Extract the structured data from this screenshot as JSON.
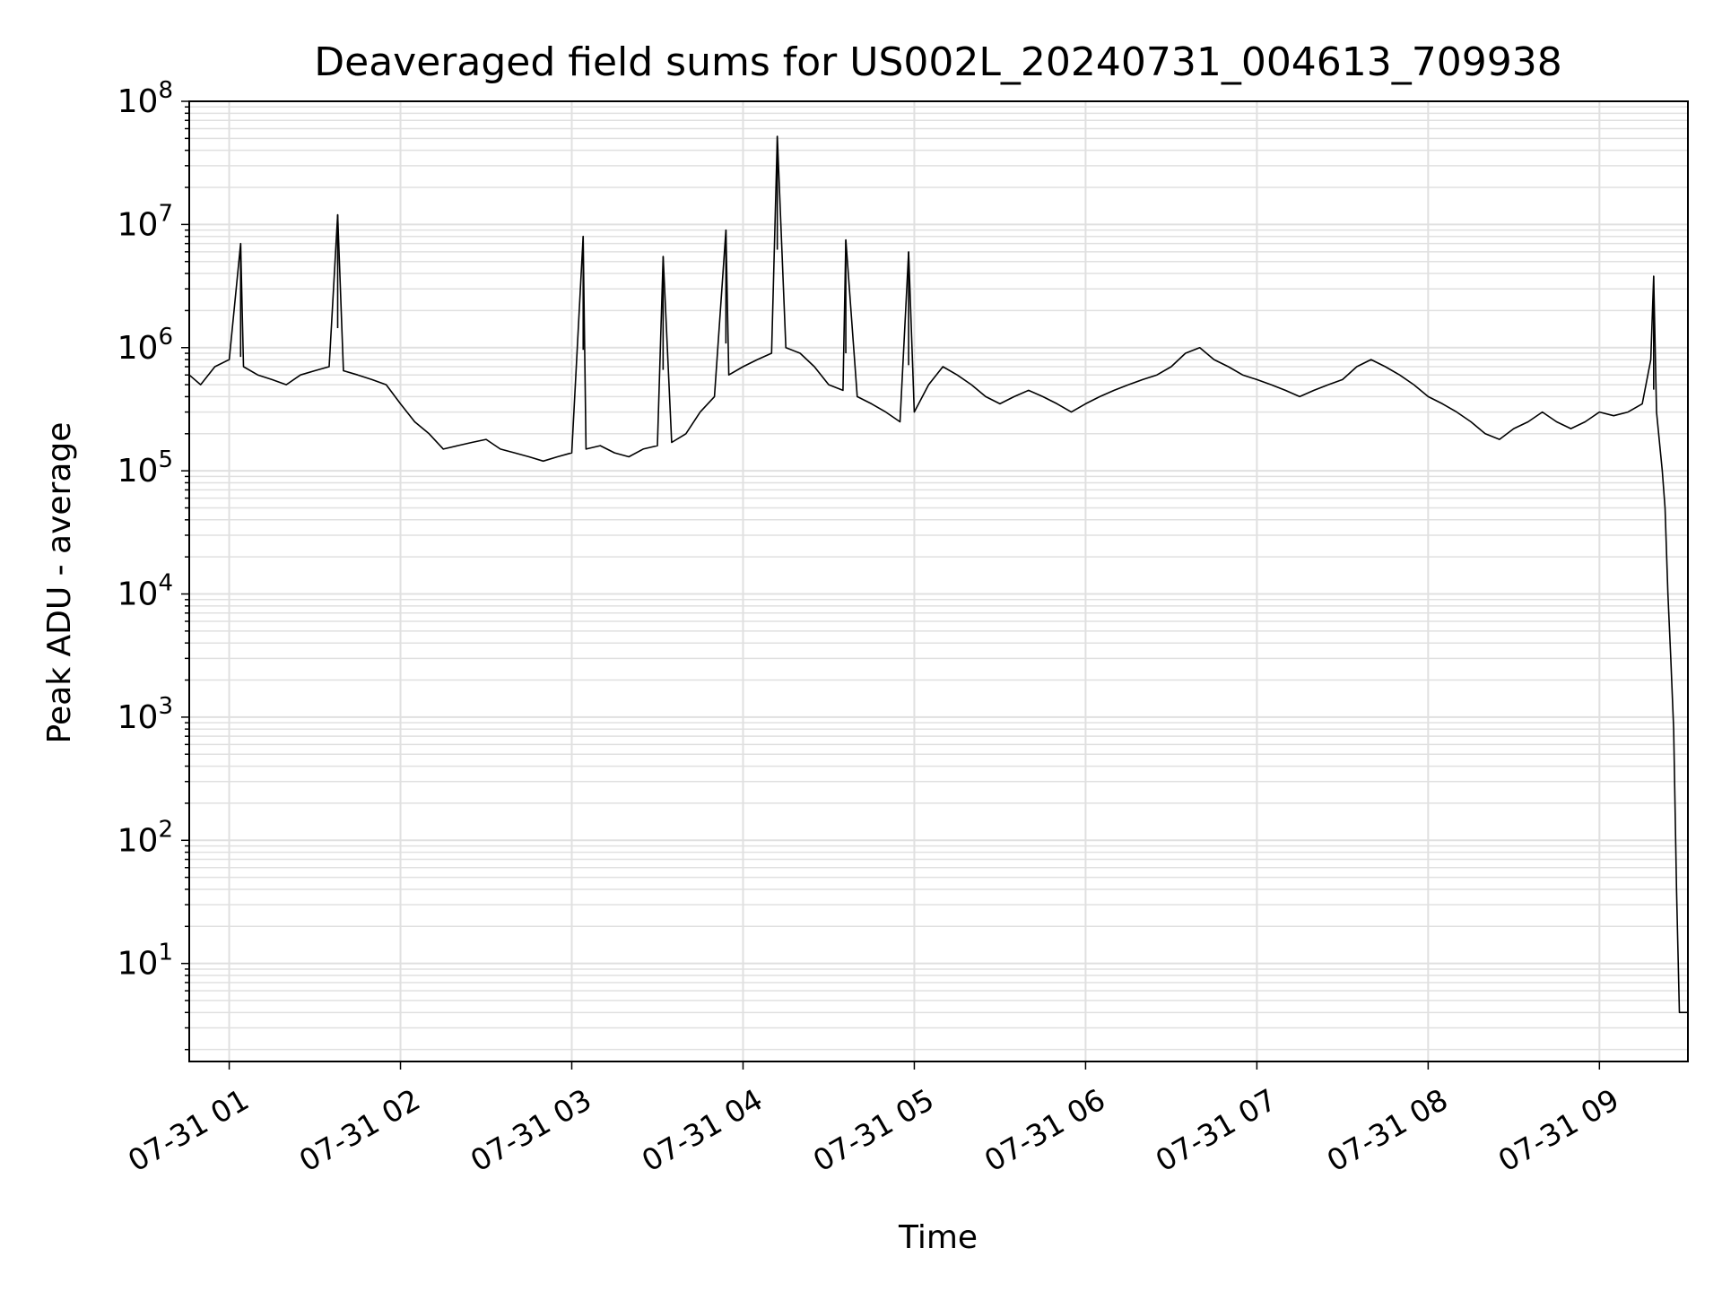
{
  "chart_data": {
    "type": "line",
    "title": "Deaveraged field sums for US002L_20240731_004613_709938",
    "xlabel": "Time",
    "ylabel": "Peak ADU - average",
    "yscale": "log",
    "ylim": [
      1.6,
      100000000
    ],
    "xlim": [
      "07-31 00:46",
      "07-31 09:31"
    ],
    "grid": true,
    "line_color": "#000000",
    "grid_color": "#e0e0e0",
    "x_ticks": [
      "07-31 01",
      "07-31 02",
      "07-31 03",
      "07-31 04",
      "07-31 05",
      "07-31 06",
      "07-31 07",
      "07-31 08",
      "07-31 09"
    ],
    "y_ticks": [
      {
        "base": "10",
        "exp": "1",
        "value": 10
      },
      {
        "base": "10",
        "exp": "2",
        "value": 100
      },
      {
        "base": "10",
        "exp": "3",
        "value": 1000
      },
      {
        "base": "10",
        "exp": "4",
        "value": 10000
      },
      {
        "base": "10",
        "exp": "5",
        "value": 100000
      },
      {
        "base": "10",
        "exp": "6",
        "value": 1000000
      },
      {
        "base": "10",
        "exp": "7",
        "value": 10000000
      },
      {
        "base": "10",
        "exp": "8",
        "value": 100000000
      }
    ],
    "series": [
      {
        "x": [
          "07-31 00:46",
          "07-31 00:50",
          "07-31 00:55",
          "07-31 01:00",
          "07-31 01:05",
          "07-31 01:10",
          "07-31 01:15",
          "07-31 01:20",
          "07-31 01:25",
          "07-31 01:30",
          "07-31 01:35",
          "07-31 01:40",
          "07-31 01:45",
          "07-31 01:50",
          "07-31 01:55",
          "07-31 02:00",
          "07-31 02:05",
          "07-31 02:10",
          "07-31 02:15",
          "07-31 02:20",
          "07-31 02:25",
          "07-31 02:30",
          "07-31 02:35",
          "07-31 02:40",
          "07-31 02:45",
          "07-31 02:50",
          "07-31 02:55",
          "07-31 03:00",
          "07-31 03:05",
          "07-31 03:10",
          "07-31 03:15",
          "07-31 03:20",
          "07-31 03:25",
          "07-31 03:30",
          "07-31 03:35",
          "07-31 03:40",
          "07-31 03:45",
          "07-31 03:50",
          "07-31 03:55",
          "07-31 04:00",
          "07-31 04:05",
          "07-31 04:10",
          "07-31 04:15",
          "07-31 04:20",
          "07-31 04:25",
          "07-31 04:30",
          "07-31 04:35",
          "07-31 04:40",
          "07-31 04:45",
          "07-31 04:50",
          "07-31 04:55",
          "07-31 05:00",
          "07-31 05:05",
          "07-31 05:10",
          "07-31 05:15",
          "07-31 05:20",
          "07-31 05:25",
          "07-31 05:30",
          "07-31 05:35",
          "07-31 05:40",
          "07-31 05:45",
          "07-31 05:50",
          "07-31 05:55",
          "07-31 06:00",
          "07-31 06:05",
          "07-31 06:10",
          "07-31 06:15",
          "07-31 06:20",
          "07-31 06:25",
          "07-31 06:30",
          "07-31 06:35",
          "07-31 06:40",
          "07-31 06:45",
          "07-31 06:50",
          "07-31 06:55",
          "07-31 07:00",
          "07-31 07:05",
          "07-31 07:10",
          "07-31 07:15",
          "07-31 07:20",
          "07-31 07:25",
          "07-31 07:30",
          "07-31 07:35",
          "07-31 07:40",
          "07-31 07:45",
          "07-31 07:50",
          "07-31 07:55",
          "07-31 08:00",
          "07-31 08:05",
          "07-31 08:10",
          "07-31 08:15",
          "07-31 08:20",
          "07-31 08:25",
          "07-31 08:30",
          "07-31 08:35",
          "07-31 08:40",
          "07-31 08:45",
          "07-31 08:50",
          "07-31 08:55",
          "07-31 09:00",
          "07-31 09:05",
          "07-31 09:10",
          "07-31 09:15",
          "07-31 09:18",
          "07-31 09:20",
          "07-31 09:22",
          "07-31 09:23",
          "07-31 09:24",
          "07-31 09:25",
          "07-31 09:26",
          "07-31 09:27",
          "07-31 09:28",
          "07-31 09:30",
          "07-31 09:31"
        ],
        "y": [
          600000,
          500000,
          700000,
          800000,
          700000,
          600000,
          550000,
          500000,
          600000,
          650000,
          700000,
          650000,
          600000,
          550000,
          500000,
          350000,
          250000,
          200000,
          150000,
          160000,
          170000,
          180000,
          150000,
          140000,
          130000,
          120000,
          130000,
          140000,
          150000,
          160000,
          140000,
          130000,
          150000,
          160000,
          170000,
          200000,
          300000,
          400000,
          600000,
          700000,
          800000,
          900000,
          1000000,
          900000,
          700000,
          500000,
          450000,
          400000,
          350000,
          300000,
          250000,
          300000,
          500000,
          700000,
          600000,
          500000,
          400000,
          350000,
          400000,
          450000,
          400000,
          350000,
          300000,
          350000,
          400000,
          450000,
          500000,
          550000,
          600000,
          700000,
          900000,
          1000000,
          800000,
          700000,
          600000,
          550000,
          500000,
          450000,
          400000,
          450000,
          500000,
          550000,
          700000,
          800000,
          700000,
          600000,
          500000,
          400000,
          350000,
          300000,
          250000,
          200000,
          180000,
          220000,
          250000,
          300000,
          250000,
          220000,
          250000,
          300000,
          280000,
          300000,
          350000,
          800000,
          300000,
          100000,
          50000,
          10000,
          3000,
          800,
          40,
          4,
          4,
          4
        ]
      }
    ],
    "spikes": [
      {
        "x": "07-31 01:04",
        "y": 7000000
      },
      {
        "x": "07-31 01:38",
        "y": 12000000
      },
      {
        "x": "07-31 03:04",
        "y": 8000000
      },
      {
        "x": "07-31 03:32",
        "y": 5500000
      },
      {
        "x": "07-31 03:54",
        "y": 9000000
      },
      {
        "x": "07-31 04:12",
        "y": 52000000
      },
      {
        "x": "07-31 04:36",
        "y": 7500000
      },
      {
        "x": "07-31 04:58",
        "y": 6000000
      },
      {
        "x": "07-31 09:19",
        "y": 3800000
      }
    ]
  }
}
